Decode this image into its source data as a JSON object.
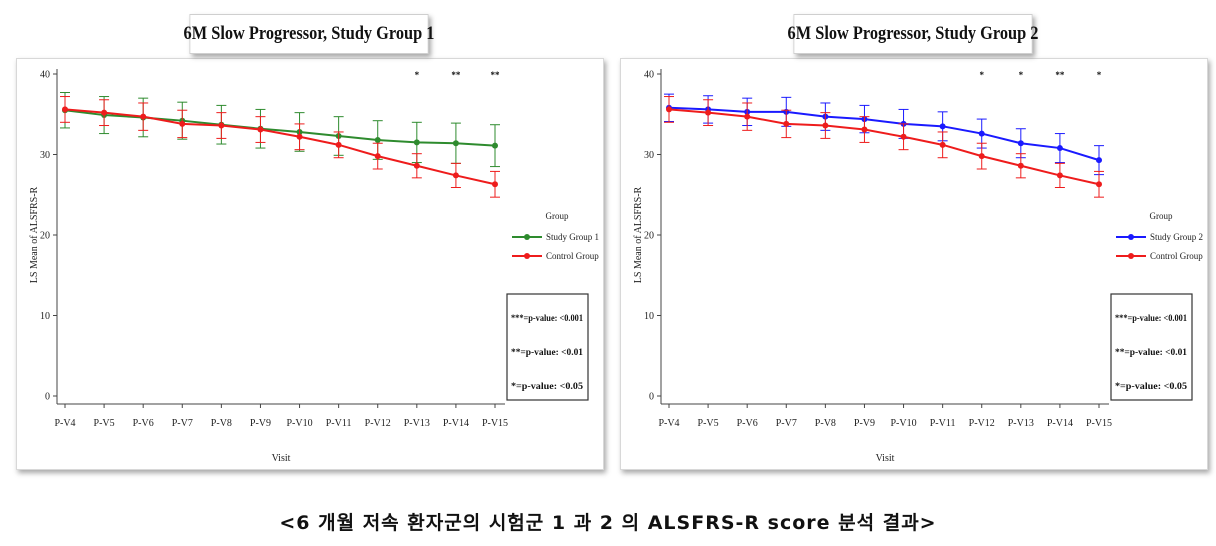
{
  "caption": "<6 개월 저속 환자군의 시험군 1 과 2 의 ALSFRS-R score 분석 결과>",
  "chart_data": [
    {
      "type": "line",
      "title": "6M Slow Progressor, Study Group 1",
      "xlabel": "Visit",
      "ylabel": "LS Mean of ALSFRS-R",
      "ylim": [
        0,
        40
      ],
      "yticks": [
        0,
        10,
        20,
        30,
        40
      ],
      "categories": [
        "P-V4",
        "P-V5",
        "P-V6",
        "P-V7",
        "P-V8",
        "P-V9",
        "P-V10",
        "P-V11",
        "P-V12",
        "P-V13",
        "P-V14",
        "P-V15"
      ],
      "legend_title": "Group",
      "series": [
        {
          "name": "Study Group 1",
          "color": "#2e8b2e",
          "values": [
            35.5,
            34.9,
            34.6,
            34.2,
            33.7,
            33.2,
            32.8,
            32.3,
            31.8,
            31.5,
            31.4,
            31.1
          ],
          "err": [
            2.2,
            2.3,
            2.4,
            2.3,
            2.4,
            2.4,
            2.4,
            2.4,
            2.4,
            2.5,
            2.5,
            2.6
          ]
        },
        {
          "name": "Control Group",
          "color": "#ee1c1c",
          "values": [
            35.6,
            35.2,
            34.7,
            33.8,
            33.6,
            33.1,
            32.2,
            31.2,
            29.8,
            28.6,
            27.4,
            26.3
          ],
          "err": [
            1.6,
            1.6,
            1.7,
            1.7,
            1.6,
            1.6,
            1.6,
            1.6,
            1.6,
            1.5,
            1.5,
            1.6
          ]
        }
      ],
      "significance": [
        {
          "category": "P-V13",
          "mark": "*"
        },
        {
          "category": "P-V14",
          "mark": "**"
        },
        {
          "category": "P-V15",
          "mark": "**"
        }
      ],
      "pvalue_legend": [
        "***=p-value: <0.001",
        "**=p-value: <0.01",
        "*=p-value: <0.05"
      ]
    },
    {
      "type": "line",
      "title": "6M Slow Progressor, Study Group 2",
      "xlabel": "Visit",
      "ylabel": "LS Mean of ALSFRS-R",
      "ylim": [
        0,
        40
      ],
      "yticks": [
        0,
        10,
        20,
        30,
        40
      ],
      "categories": [
        "P-V4",
        "P-V5",
        "P-V6",
        "P-V7",
        "P-V8",
        "P-V9",
        "P-V10",
        "P-V11",
        "P-V12",
        "P-V13",
        "P-V14",
        "P-V15"
      ],
      "legend_title": "Group",
      "series": [
        {
          "name": "Study Group 2",
          "color": "#1a1aff",
          "values": [
            35.8,
            35.6,
            35.3,
            35.3,
            34.7,
            34.4,
            33.8,
            33.5,
            32.6,
            31.4,
            30.8,
            29.3
          ],
          "err": [
            1.7,
            1.7,
            1.7,
            1.8,
            1.7,
            1.7,
            1.8,
            1.8,
            1.8,
            1.8,
            1.8,
            1.8
          ]
        },
        {
          "name": "Control Group",
          "color": "#ee1c1c",
          "values": [
            35.6,
            35.2,
            34.7,
            33.8,
            33.6,
            33.1,
            32.2,
            31.2,
            29.8,
            28.6,
            27.4,
            26.3
          ],
          "err": [
            1.6,
            1.6,
            1.7,
            1.7,
            1.6,
            1.6,
            1.6,
            1.6,
            1.6,
            1.5,
            1.5,
            1.6
          ]
        }
      ],
      "significance": [
        {
          "category": "P-V12",
          "mark": "*"
        },
        {
          "category": "P-V13",
          "mark": "*"
        },
        {
          "category": "P-V14",
          "mark": "**"
        },
        {
          "category": "P-V15",
          "mark": "*"
        }
      ],
      "pvalue_legend": [
        "***=p-value: <0.001",
        "**=p-value: <0.01",
        "*=p-value: <0.05"
      ]
    }
  ]
}
